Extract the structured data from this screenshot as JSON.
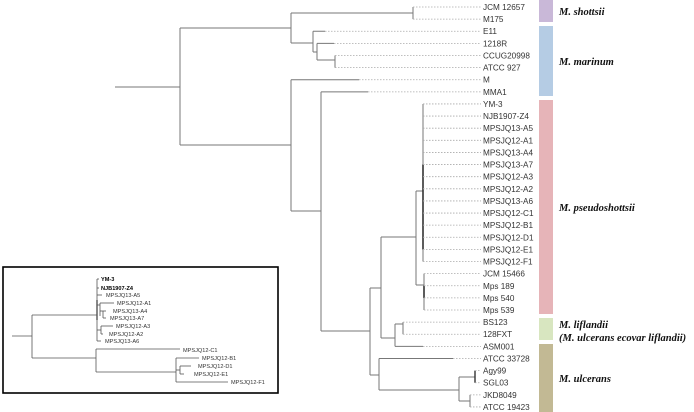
{
  "leaves": [
    "JCM 12657",
    "M175",
    "E11",
    "1218R",
    "CCUG20998",
    "ATCC 927",
    "M",
    "MMA1",
    "YM-3",
    "NJB1907-Z4",
    "MPSJQ13-A5",
    "MPSJQ12-A1",
    "MPSJQ13-A4",
    "MPSJQ13-A7",
    "MPSJQ12-A3",
    "MPSJQ12-A2",
    "MPSJQ13-A6",
    "MPSJQ12-C1",
    "MPSJQ12-B1",
    "MPSJQ12-D1",
    "MPSJQ12-E1",
    "MPSJQ12-F1",
    "JCM 15466",
    "Mps 189",
    "Mps 540",
    "Mps 539",
    "BS123",
    "128FXT",
    "ASM001",
    "ATCC 33728",
    "Agy99",
    "SGL03",
    "JKD8049",
    "ATCC 19423"
  ],
  "clades": [
    {
      "label": "M. shottsii",
      "color": "#c9b8d8"
    },
    {
      "label": "M. marinum",
      "color": "#b5cce4"
    },
    {
      "label": "M. pseudoshottsii",
      "color": "#e6b4b8"
    },
    {
      "label": "M. liflandii",
      "label2": "(M. ulcerans ecovar liflandii)",
      "color": "#d8e6c0"
    },
    {
      "label": "M. ulcerans",
      "color": "#c2b994"
    }
  ],
  "inset": {
    "leaves": [
      "YM-3",
      "NJB1907-Z4",
      "MPSJQ13-A5",
      "MPSJQ12-A1",
      "MPSJQ13-A4",
      "MPSJQ13-A7",
      "MPSJQ12-A3",
      "MPSJQ12-A2",
      "MPSJQ13-A6",
      "MPSJQ12-C1",
      "MPSJQ12-B1",
      "MPSJQ12-D1",
      "MPSJQ12-E1",
      "MPSJQ12-F1"
    ],
    "bold": [
      "YM-3",
      "NJB1907-Z4"
    ]
  }
}
